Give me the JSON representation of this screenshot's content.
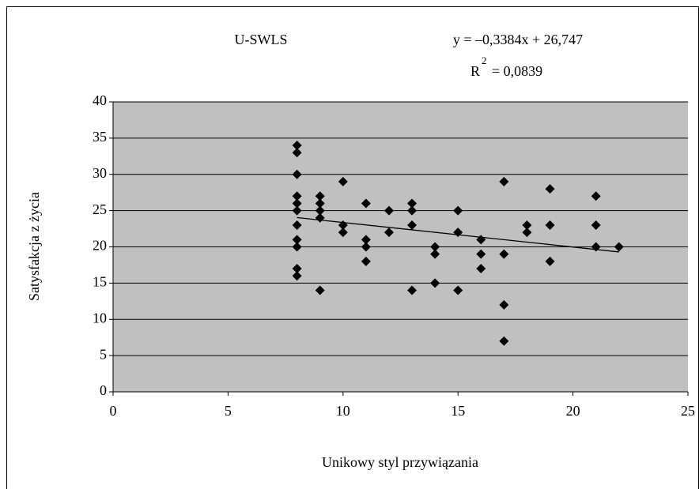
{
  "chart_data": {
    "type": "scatter",
    "title": "U-SWLS",
    "equation": "y = –0,3384x + 26,747",
    "r_squared": {
      "base": "R",
      "exponent": "2",
      "rest": "= 0,0839"
    },
    "xlabel": "Unikowy styl przywiązania",
    "ylabel": "Satysfakcja z życia",
    "color": "#000000",
    "background": "#c0c0c0",
    "grid": true,
    "x": [
      8,
      8,
      8,
      8,
      8,
      8,
      8,
      8,
      8,
      8,
      8,
      9,
      9,
      9,
      9,
      9,
      10,
      10,
      10,
      11,
      11,
      11,
      11,
      12,
      12,
      13,
      13,
      13,
      13,
      14,
      14,
      14,
      15,
      15,
      15,
      16,
      16,
      16,
      17,
      17,
      17,
      17,
      18,
      18,
      19,
      19,
      19,
      21,
      21,
      21,
      22
    ],
    "values": [
      34,
      33,
      30,
      27,
      26,
      25,
      23,
      21,
      20,
      17,
      16,
      27,
      26,
      25,
      24,
      14,
      29,
      23,
      22,
      26,
      21,
      20,
      18,
      25,
      22,
      26,
      25,
      23,
      14,
      20,
      19,
      15,
      25,
      22,
      14,
      21,
      19,
      17,
      29,
      19,
      12,
      7,
      23,
      22,
      28,
      23,
      18,
      27,
      23,
      20,
      20
    ],
    "trendline": {
      "x": [
        8,
        22
      ],
      "values": [
        24.04,
        19.3
      ]
    },
    "xlim": [
      0,
      25
    ],
    "xticks": [
      0,
      5,
      10,
      15,
      20,
      25
    ],
    "ylim": [
      0,
      40
    ],
    "yticks": [
      0,
      5,
      10,
      15,
      20,
      25,
      30,
      35,
      40
    ]
  }
}
